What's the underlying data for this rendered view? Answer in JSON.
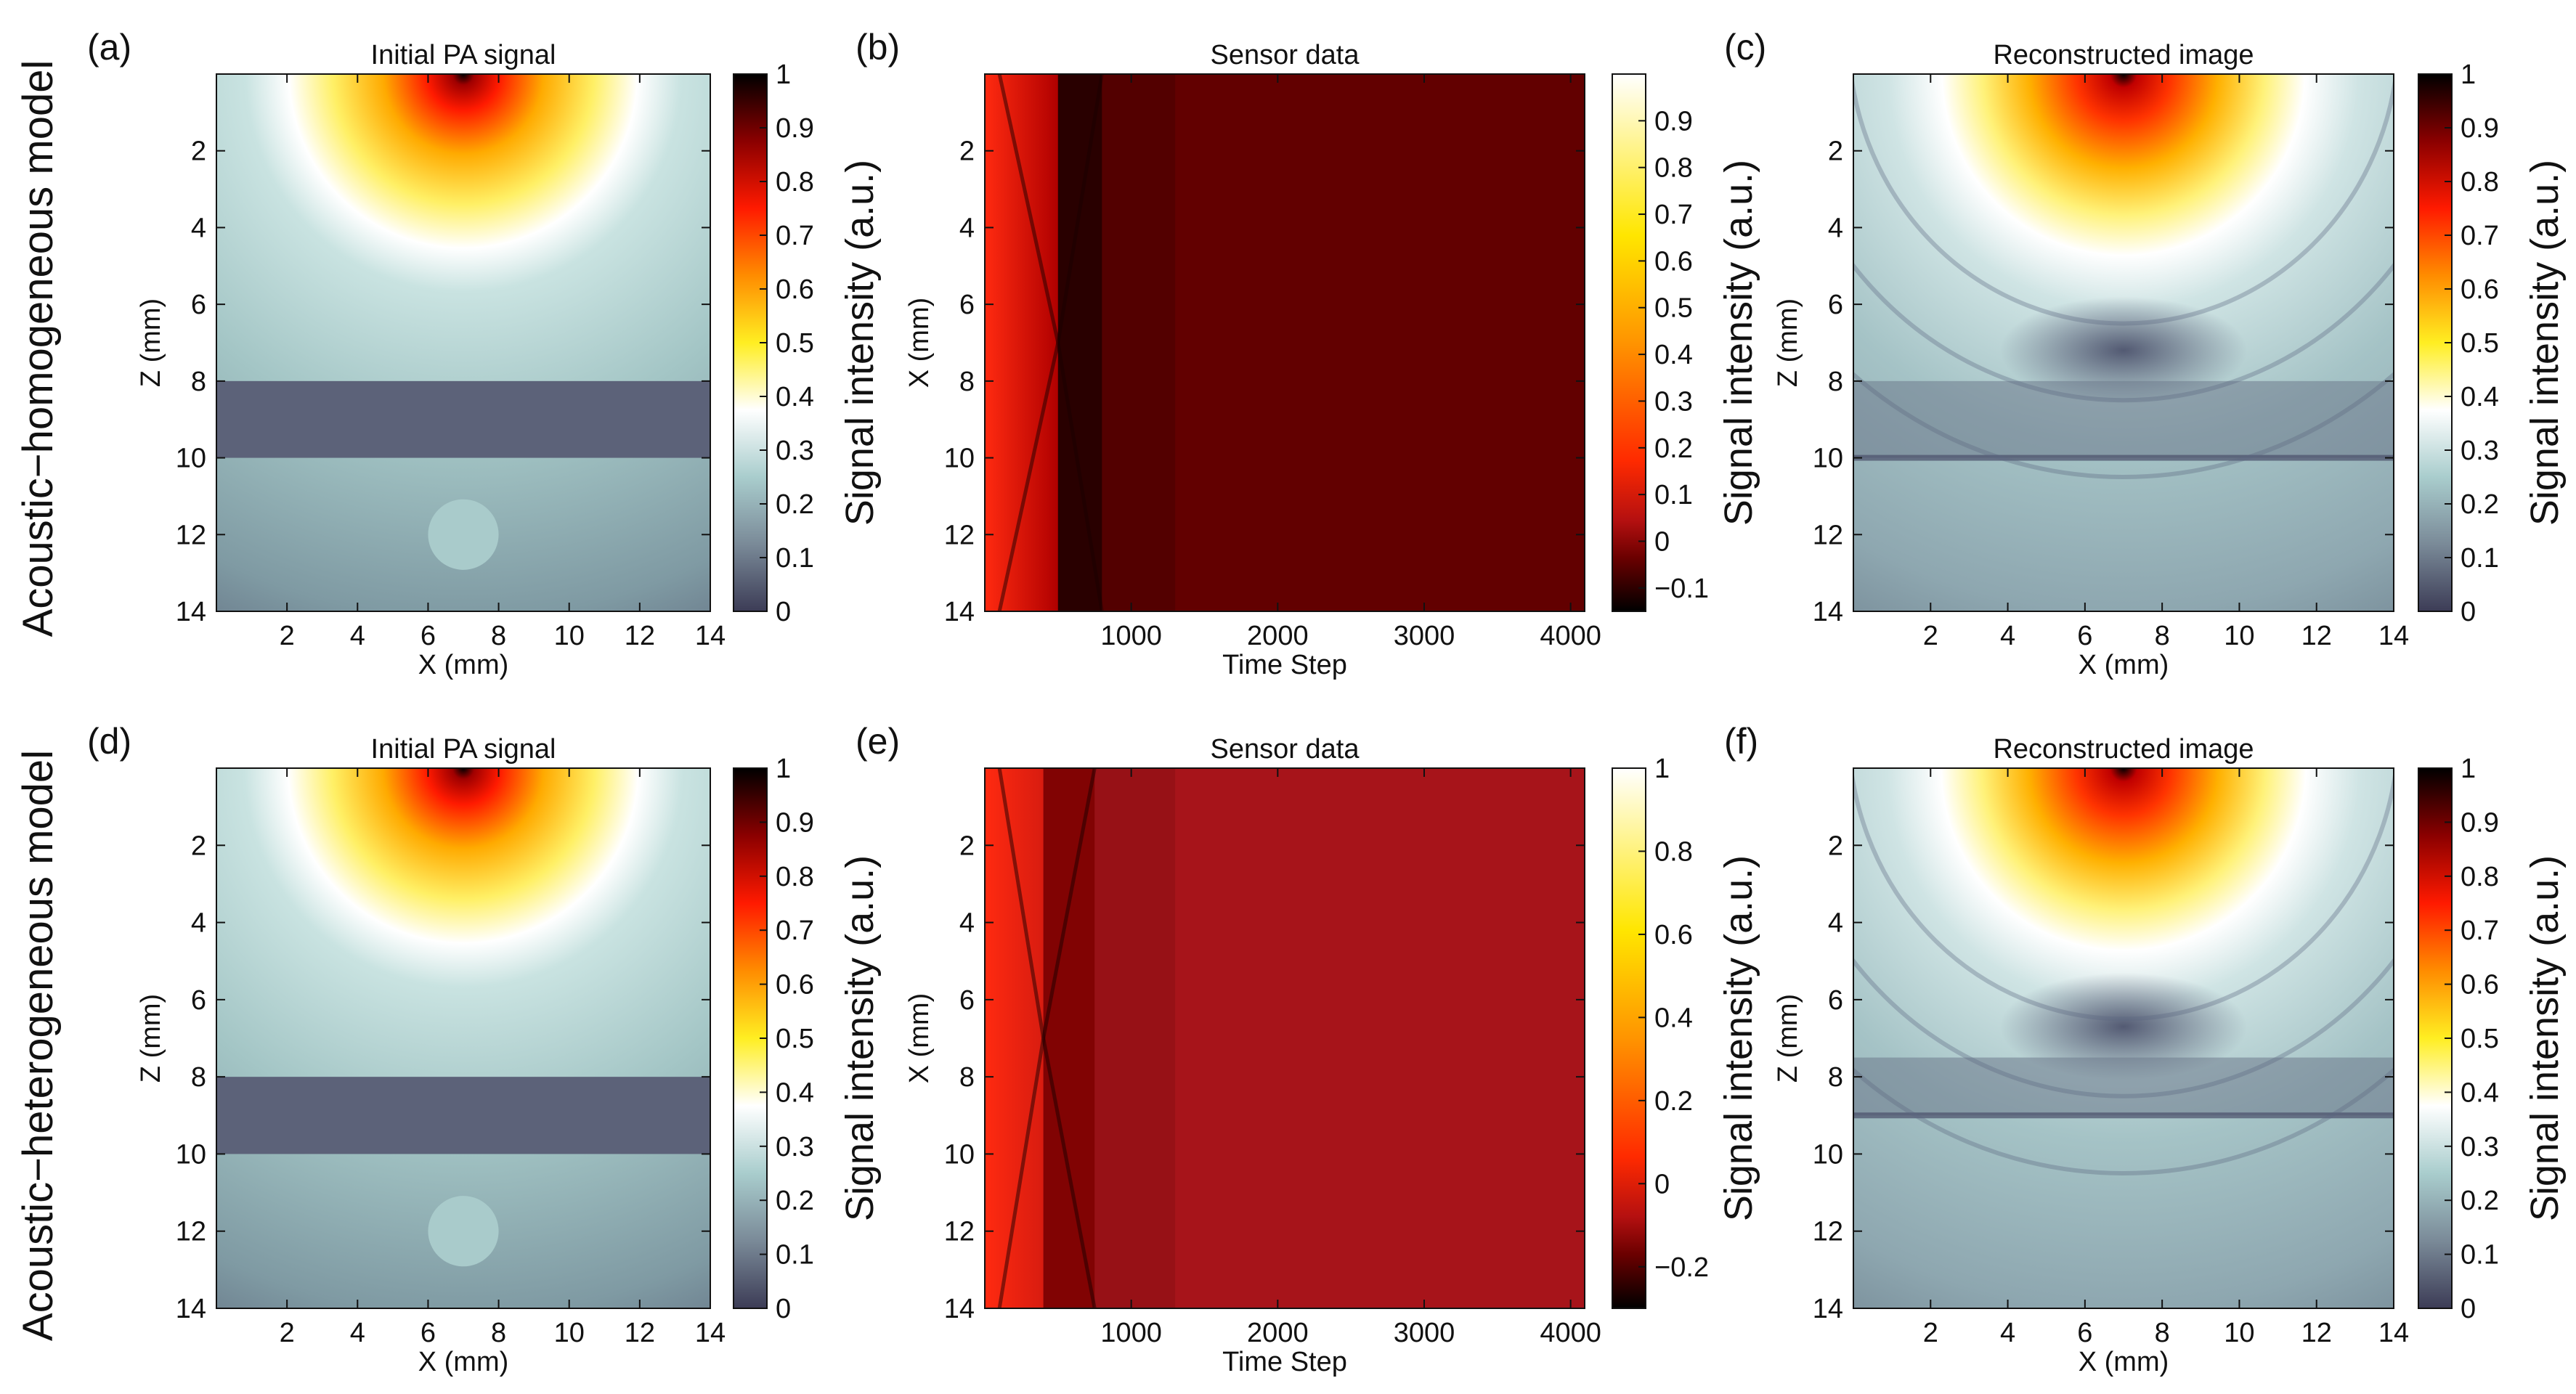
{
  "figure": {
    "row_labels": [
      "Acoustic−homogeneous model",
      "Acoustic−heterogeneous model"
    ]
  },
  "colormaps": {
    "hot_bone": [
      "#000000",
      "#8b0000",
      "#ff1a00",
      "#ff8c00",
      "#ffee22",
      "#ffffff",
      "#a9cdcd",
      "#7a8a98",
      "#3c3c56"
    ],
    "sensor": [
      "#000000",
      "#6b0000",
      "#b51010",
      "#ff2a00",
      "#ff9400",
      "#ffe600",
      "#ffffff"
    ]
  },
  "chart_data": [
    {
      "id": "a",
      "panel_label": "(a)",
      "type": "heatmap",
      "kind": "initial",
      "title": "Initial PA signal",
      "xlabel": "X (mm)",
      "ylabel": "Z (mm)",
      "xlim": [
        0,
        14
      ],
      "ylim": [
        14,
        0
      ],
      "xticks": [
        "2",
        "4",
        "6",
        "8",
        "10",
        "12",
        "14"
      ],
      "xtick_values": [
        2,
        4,
        6,
        8,
        10,
        12,
        14
      ],
      "yticks": [
        "2",
        "4",
        "6",
        "8",
        "10",
        "12",
        "14"
      ],
      "ytick_values": [
        2,
        4,
        6,
        8,
        10,
        12,
        14
      ],
      "colorbar": {
        "label": "Signal intensity (a.u.)",
        "range": [
          0,
          1
        ],
        "colormap": "hot_bone",
        "ticks": [
          "0",
          "0.1",
          "0.2",
          "0.3",
          "0.4",
          "0.5",
          "0.6",
          "0.7",
          "0.8",
          "0.9",
          "1"
        ],
        "tick_values": [
          0,
          0.1,
          0.2,
          0.3,
          0.4,
          0.5,
          0.6,
          0.7,
          0.8,
          0.9,
          1
        ]
      },
      "features": {
        "source": [
          7,
          0.3
        ],
        "band_z": [
          8,
          10
        ],
        "inclusion_center": [
          7,
          12
        ],
        "inclusion_radius": 1
      }
    },
    {
      "id": "b",
      "panel_label": "(b)",
      "type": "heatmap",
      "kind": "sensor",
      "title": "Sensor data",
      "xlabel": "Time Step",
      "ylabel": "X (mm)",
      "xlim": [
        0,
        4096
      ],
      "ylim": [
        14,
        0
      ],
      "xticks": [
        "1000",
        "2000",
        "3000",
        "4000"
      ],
      "xtick_values": [
        1000,
        2000,
        3000,
        4000
      ],
      "yticks": [
        "2",
        "4",
        "6",
        "8",
        "10",
        "12",
        "14"
      ],
      "ytick_values": [
        2,
        4,
        6,
        8,
        10,
        12,
        14
      ],
      "colorbar": {
        "label": "Signal intensity (a.u.)",
        "range": [
          -0.15,
          1
        ],
        "colormap": "sensor",
        "ticks": [
          "−0.1",
          "0",
          "0.1",
          "0.2",
          "0.3",
          "0.4",
          "0.5",
          "0.6",
          "0.7",
          "0.8",
          "0.9"
        ],
        "tick_values": [
          -0.1,
          0,
          0.1,
          0.2,
          0.3,
          0.4,
          0.5,
          0.6,
          0.7,
          0.8,
          0.9
        ]
      },
      "features": {
        "background_value": 0.0,
        "dark_front_time": [
          500,
          800
        ]
      }
    },
    {
      "id": "c",
      "panel_label": "(c)",
      "type": "heatmap",
      "kind": "recon",
      "title": "Reconstructed image",
      "xlabel": "X (mm)",
      "ylabel": "Z (mm)",
      "xlim": [
        0,
        14
      ],
      "ylim": [
        14,
        0
      ],
      "xticks": [
        "2",
        "4",
        "6",
        "8",
        "10",
        "12",
        "14"
      ],
      "xtick_values": [
        2,
        4,
        6,
        8,
        10,
        12,
        14
      ],
      "yticks": [
        "2",
        "4",
        "6",
        "8",
        "10",
        "12",
        "14"
      ],
      "ytick_values": [
        2,
        4,
        6,
        8,
        10,
        12,
        14
      ],
      "colorbar": {
        "label": "Signal intensity (a.u.)",
        "range": [
          0,
          1
        ],
        "colormap": "hot_bone",
        "ticks": [
          "0",
          "0.1",
          "0.2",
          "0.3",
          "0.4",
          "0.5",
          "0.6",
          "0.7",
          "0.8",
          "0.9",
          "1"
        ],
        "tick_values": [
          0,
          0.1,
          0.2,
          0.3,
          0.4,
          0.5,
          0.6,
          0.7,
          0.8,
          0.9,
          1
        ]
      },
      "features": {
        "source": [
          7,
          0.3
        ],
        "band_z": [
          8,
          10
        ]
      }
    },
    {
      "id": "d",
      "panel_label": "(d)",
      "type": "heatmap",
      "kind": "initial",
      "title": "Initial PA signal",
      "xlabel": "X (mm)",
      "ylabel": "Z (mm)",
      "xlim": [
        0,
        14
      ],
      "ylim": [
        14,
        0
      ],
      "xticks": [
        "2",
        "4",
        "6",
        "8",
        "10",
        "12",
        "14"
      ],
      "xtick_values": [
        2,
        4,
        6,
        8,
        10,
        12,
        14
      ],
      "yticks": [
        "2",
        "4",
        "6",
        "8",
        "10",
        "12",
        "14"
      ],
      "ytick_values": [
        2,
        4,
        6,
        8,
        10,
        12,
        14
      ],
      "colorbar": {
        "label": "Signal intensity (a.u.)",
        "range": [
          0,
          1
        ],
        "colormap": "hot_bone",
        "ticks": [
          "0",
          "0.1",
          "0.2",
          "0.3",
          "0.4",
          "0.5",
          "0.6",
          "0.7",
          "0.8",
          "0.9",
          "1"
        ],
        "tick_values": [
          0,
          0.1,
          0.2,
          0.3,
          0.4,
          0.5,
          0.6,
          0.7,
          0.8,
          0.9,
          1
        ]
      },
      "features": {
        "source": [
          7,
          0.3
        ],
        "band_z": [
          8,
          10
        ],
        "inclusion_center": [
          7,
          12
        ],
        "inclusion_radius": 1
      }
    },
    {
      "id": "e",
      "panel_label": "(e)",
      "type": "heatmap",
      "kind": "sensor",
      "title": "Sensor data",
      "xlabel": "Time Step",
      "ylabel": "X (mm)",
      "xlim": [
        0,
        4096
      ],
      "ylim": [
        14,
        0
      ],
      "xticks": [
        "1000",
        "2000",
        "3000",
        "4000"
      ],
      "xtick_values": [
        1000,
        2000,
        3000,
        4000
      ],
      "yticks": [
        "2",
        "4",
        "6",
        "8",
        "10",
        "12",
        "14"
      ],
      "ytick_values": [
        2,
        4,
        6,
        8,
        10,
        12,
        14
      ],
      "colorbar": {
        "label": "Signal intensity (a.u.)",
        "range": [
          -0.3,
          1
        ],
        "colormap": "sensor",
        "ticks": [
          "−0.2",
          "0",
          "0.2",
          "0.4",
          "0.6",
          "0.8",
          "1"
        ],
        "tick_values": [
          -0.2,
          0,
          0.2,
          0.4,
          0.6,
          0.8,
          1
        ]
      },
      "features": {
        "background_value": 0.0,
        "dark_front_time": [
          400,
          750
        ]
      }
    },
    {
      "id": "f",
      "panel_label": "(f)",
      "type": "heatmap",
      "kind": "recon",
      "title": "Reconstructed image",
      "xlabel": "X (mm)",
      "ylabel": "Z (mm)",
      "xlim": [
        0,
        14
      ],
      "ylim": [
        14,
        0
      ],
      "xticks": [
        "2",
        "4",
        "6",
        "8",
        "10",
        "12",
        "14"
      ],
      "xtick_values": [
        2,
        4,
        6,
        8,
        10,
        12,
        14
      ],
      "yticks": [
        "2",
        "4",
        "6",
        "8",
        "10",
        "12",
        "14"
      ],
      "ytick_values": [
        2,
        4,
        6,
        8,
        10,
        12,
        14
      ],
      "colorbar": {
        "label": "Signal intensity (a.u.)",
        "range": [
          0,
          1
        ],
        "colormap": "hot_bone",
        "ticks": [
          "0",
          "0.1",
          "0.2",
          "0.3",
          "0.4",
          "0.5",
          "0.6",
          "0.7",
          "0.8",
          "0.9",
          "1"
        ],
        "tick_values": [
          0,
          0.1,
          0.2,
          0.3,
          0.4,
          0.5,
          0.6,
          0.7,
          0.8,
          0.9,
          1
        ]
      },
      "features": {
        "source": [
          7,
          0.3
        ],
        "band_z": [
          7.5,
          9
        ]
      }
    }
  ]
}
